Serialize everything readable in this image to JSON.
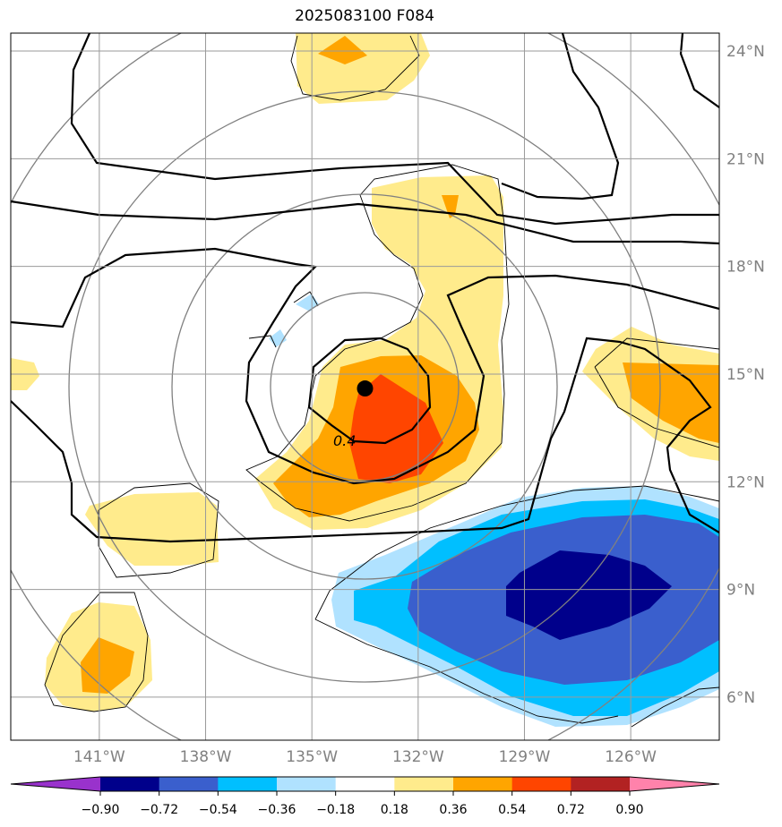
{
  "chart_data": {
    "type": "contour-map",
    "title": "2025083100 F084",
    "lon_ticks": [
      "141°W",
      "138°W",
      "135°W",
      "132°W",
      "129°W",
      "126°W"
    ],
    "lon_values": [
      -141,
      -138,
      -135,
      -132,
      -129,
      -126
    ],
    "lat_ticks": [
      "24°N",
      "21°N",
      "18°N",
      "15°N",
      "12°N",
      "9°N",
      "6°N"
    ],
    "lat_values": [
      24,
      21,
      18,
      15,
      12,
      9,
      6
    ],
    "lon_range": [
      -143.5,
      -123.5
    ],
    "lat_range": [
      4.8,
      24.5
    ],
    "grid": true,
    "colorbar": {
      "levels": [
        "−0.90",
        "−0.72",
        "−0.54",
        "−0.36",
        "−0.18",
        "0.18",
        "0.36",
        "0.54",
        "0.72",
        "0.90"
      ],
      "colors": [
        "#9932cc",
        "#00008b",
        "#3a5fcd",
        "#00bfff",
        "#b0e2ff",
        "#ffffff",
        "#ffeb8c",
        "#ffa500",
        "#ff4500",
        "#b22222",
        "#ff82ab"
      ],
      "extend": "both",
      "placement": "bottom"
    },
    "contour_label": "0.4",
    "storm_center": {
      "lon": -133.5,
      "lat": 14.6
    }
  }
}
